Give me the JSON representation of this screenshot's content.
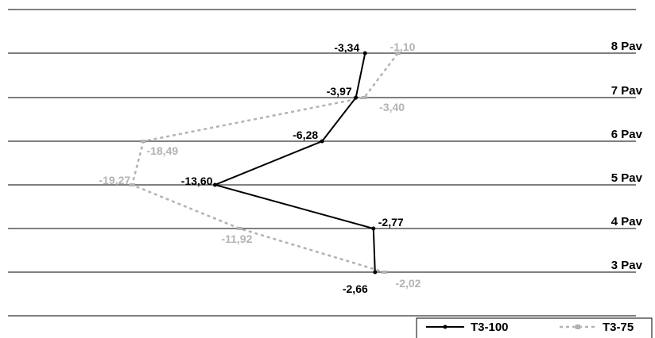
{
  "chart_data": {
    "type": "line",
    "orientation": "horizontal-profile",
    "title": "",
    "xlabel": "",
    "ylabel": "",
    "categories": [
      "8 Pav",
      "7 Pav",
      "6 Pav",
      "5 Pav",
      "4 Pav",
      "3 Pav"
    ],
    "x_range": [
      -24,
      10
    ],
    "grid": "horizontal lines at each floor",
    "legend_position": "bottom-right",
    "series": [
      {
        "name": "T3-100",
        "color": "#000000",
        "line_style": "solid",
        "values": [
          -3.34,
          -3.97,
          -6.28,
          -13.6,
          -2.77,
          -2.66
        ],
        "labels": [
          "-3,34",
          "-3,97",
          "-6,28",
          "-13,60",
          "-2,77",
          "-2,66"
        ]
      },
      {
        "name": "T3-75",
        "color": "#b3b3b3",
        "line_style": "dashed",
        "values": [
          -1.1,
          -3.4,
          -18.49,
          -19.27,
          -11.92,
          -2.02
        ],
        "labels": [
          "-1,10",
          "-3,40",
          "-18,49",
          "-19,27",
          "-11,92",
          "-2,02"
        ]
      }
    ]
  }
}
